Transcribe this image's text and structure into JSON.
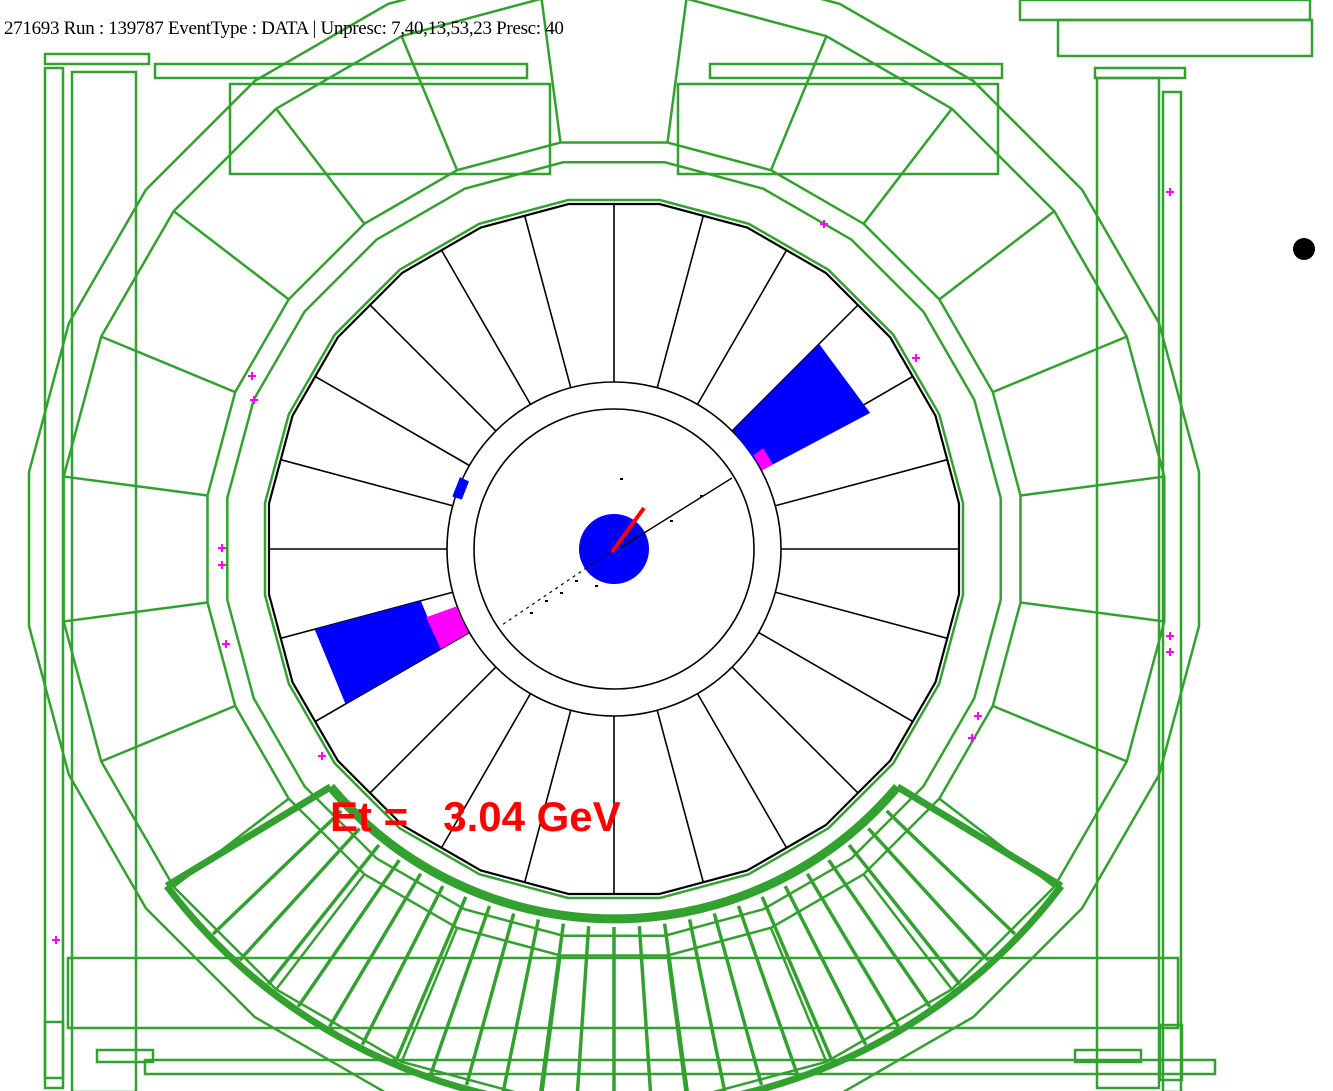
{
  "header": {
    "text": "271693  Run : 139787  EventType : DATA | Unpresc: 7,40,13,53,23 Presc: 40"
  },
  "energy": {
    "prefix": "Et =",
    "value": "3.04 GeV"
  },
  "colors": {
    "detector": "#33a12f",
    "cell_outline": "#000000",
    "em_deposit": "#0000ff",
    "had_deposit": "#ff00ff",
    "annotation": "#ff0000"
  },
  "icons": {
    "bullet": "bullet-point-icon"
  }
}
